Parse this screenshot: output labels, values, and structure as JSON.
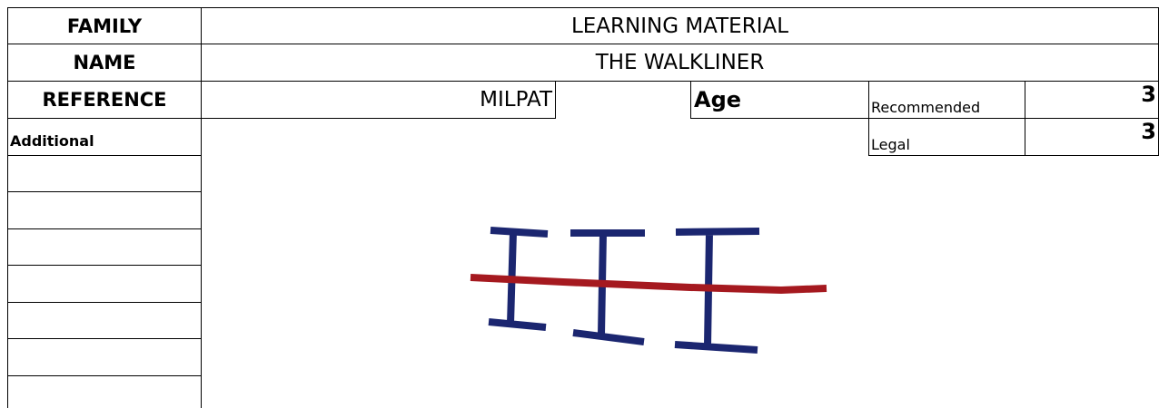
{
  "header": {
    "family": {
      "label": "FAMILY",
      "value": "LEARNING MATERIAL"
    },
    "name": {
      "label": "NAME",
      "value": "THE WALKLINER"
    },
    "reference": {
      "label": "REFERENCE",
      "value": "MILPAT"
    },
    "age": {
      "label": "Age",
      "recommended": {
        "label": "Recommended",
        "value": 3
      },
      "legal": {
        "label": "Legal",
        "value": 3
      }
    },
    "additional": {
      "label": "Additional"
    }
  }
}
